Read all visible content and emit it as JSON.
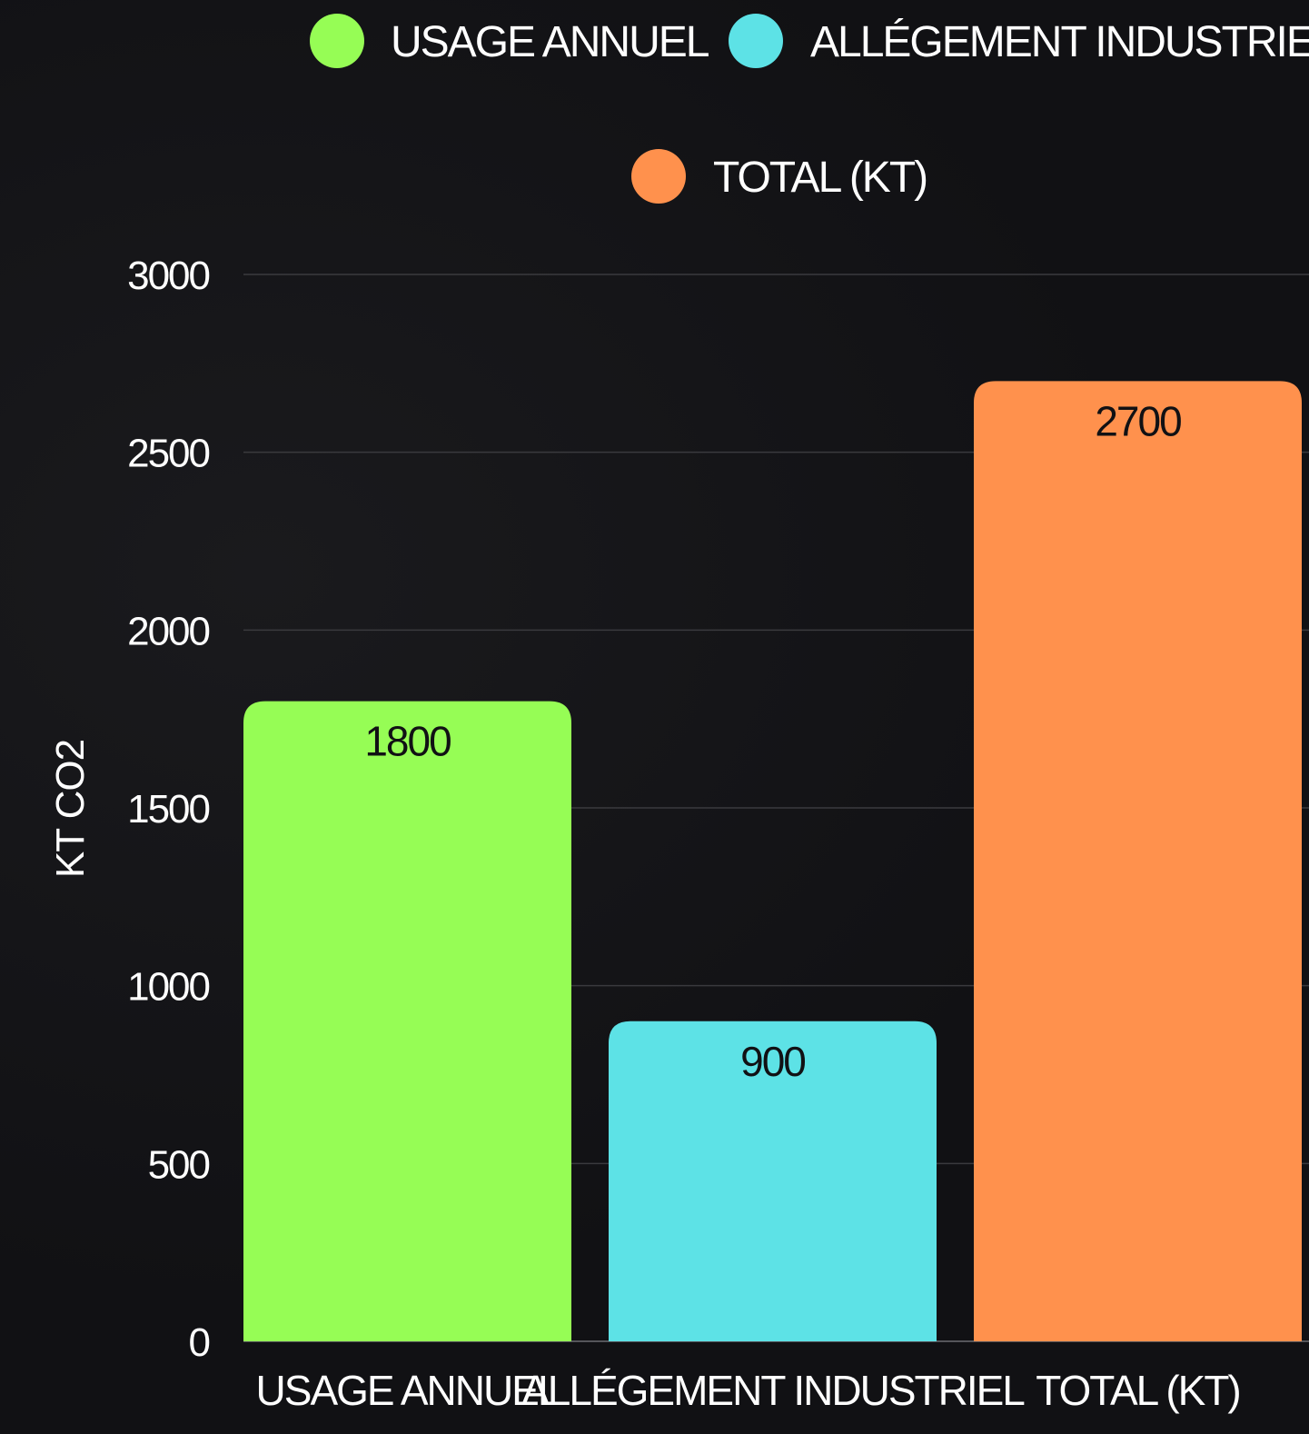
{
  "chart_data": {
    "type": "bar",
    "categories": [
      "USAGE ANNUEL",
      "ALLÉGEMENT INDUSTRIEL",
      "TOTAL (KT)"
    ],
    "values": [
      1800,
      900,
      2700
    ],
    "colors": [
      "#96fd55",
      "#5de2e6",
      "#ff914d"
    ],
    "legend": [
      {
        "label": "USAGE ANNUEL",
        "color": "#96fd55"
      },
      {
        "label": "ALLÉGEMENT INDUSTRIEL",
        "color": "#5de2e6"
      },
      {
        "label": "TOTAL (KT)",
        "color": "#ff914d"
      }
    ],
    "legend_position": "top-center",
    "title": "",
    "xlabel": "",
    "ylabel": "KT CO2",
    "ylim": [
      0,
      3000
    ],
    "yticks": [
      0,
      500,
      1000,
      1500,
      2000,
      2500,
      3000
    ],
    "grid": true,
    "data_labels": true
  }
}
